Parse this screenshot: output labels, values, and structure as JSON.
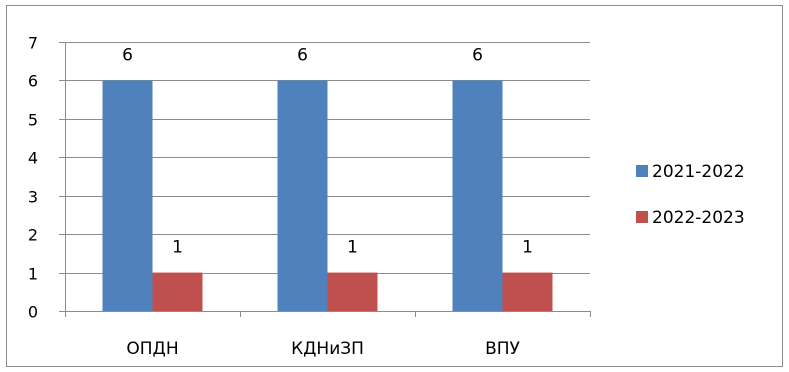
{
  "chart_data": {
    "type": "bar",
    "categories": [
      "ОПДН",
      "КДНиЗП",
      "ВПУ"
    ],
    "series": [
      {
        "name": "2021-2022",
        "values": [
          6,
          6,
          6
        ],
        "color": "#4f81bd"
      },
      {
        "name": "2022-2023",
        "values": [
          1,
          1,
          1
        ],
        "color": "#c0504d"
      }
    ],
    "yticks": [
      "0",
      "1",
      "2",
      "3",
      "4",
      "5",
      "6",
      "7"
    ],
    "ylim": [
      0,
      7
    ],
    "grid": true,
    "gridline_color": "#8c8c8c",
    "data_labels": true,
    "legend_position": "right"
  }
}
